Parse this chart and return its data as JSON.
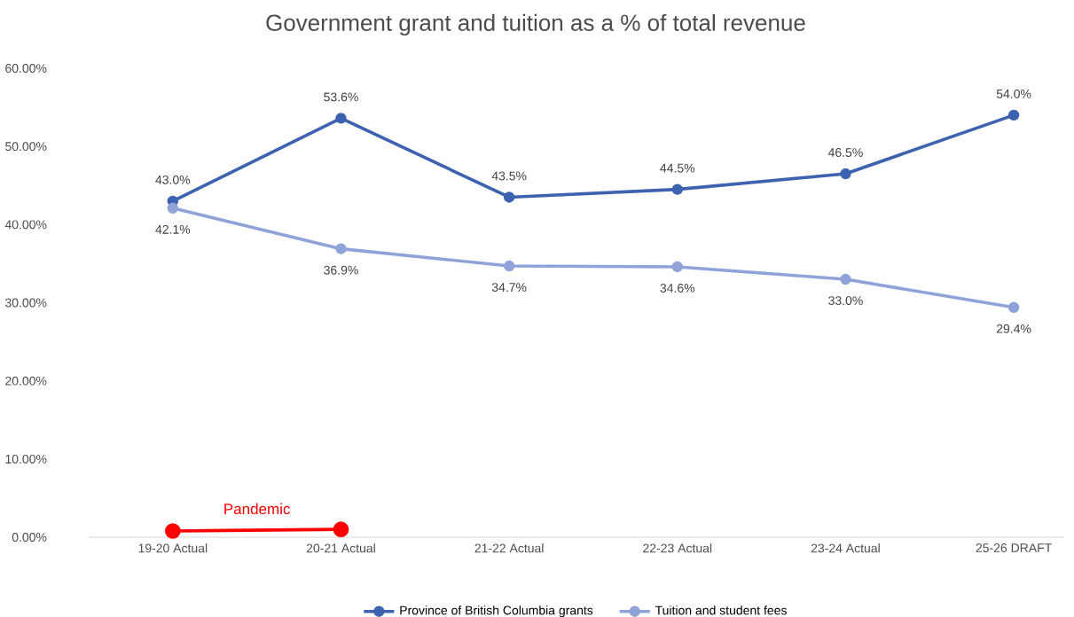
{
  "chart_data": {
    "type": "line",
    "title": "Government grant and tuition as a % of total revenue",
    "categories": [
      "19-20 Actual",
      "20-21 Actual",
      "21-22 Actual",
      "22-23 Actual",
      "23-24 Actual",
      "25-26 DRAFT"
    ],
    "series": [
      {
        "name": "Province of British Columbia grants",
        "color": "#3c62b0",
        "values": [
          43.0,
          53.6,
          43.5,
          44.5,
          46.5,
          54.0
        ],
        "value_labels": [
          "43.0%",
          "53.6%",
          "43.5%",
          "44.5%",
          "46.5%",
          "54.0%"
        ]
      },
      {
        "name": "Tuition and student fees",
        "color": "#8fa3d9",
        "values": [
          42.1,
          36.9,
          34.7,
          34.6,
          33.0,
          29.4
        ],
        "value_labels": [
          "42.1%",
          "36.9%",
          "34.7%",
          "34.6%",
          "33.0%",
          "29.4%"
        ]
      },
      {
        "color": "#ff0000",
        "values": [
          0.8,
          1.0,
          null,
          null,
          null,
          null
        ]
      }
    ],
    "annotations": [
      "Pandemic"
    ],
    "ylim": [
      0,
      60
    ],
    "yticks": [
      {
        "value": 0,
        "label": "0.00%"
      },
      {
        "value": 10,
        "label": "10.00%"
      },
      {
        "value": 20,
        "label": "20.00%"
      },
      {
        "value": 30,
        "label": "30.00%"
      },
      {
        "value": 40,
        "label": "40.00%"
      },
      {
        "value": 50,
        "label": "50.00%"
      },
      {
        "value": 60,
        "label": "60.00%"
      }
    ],
    "grid": false,
    "legend": "bottom",
    "marker": "circle",
    "line_style": "solid"
  }
}
